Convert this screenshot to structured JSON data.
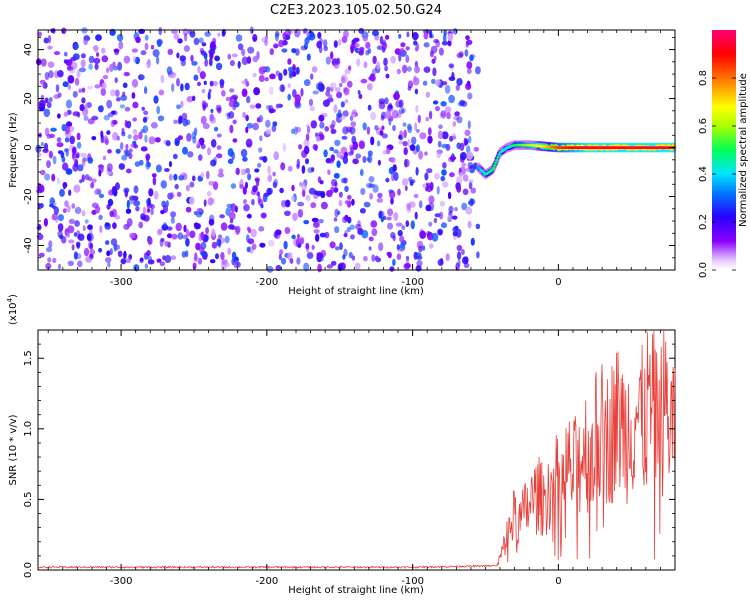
{
  "figure": {
    "title": "C2E3.2023.105.02.50.G24"
  },
  "chart_data": [
    {
      "type": "heatmap",
      "xlabel": "Height of straight line (km)",
      "ylabel": "Frequency (Hz)",
      "xlim": [
        -357,
        80
      ],
      "ylim": [
        -50,
        48
      ],
      "x_ticks": [
        -300,
        -200,
        -100,
        0
      ],
      "x_tick_labels": [
        "-300",
        "-200",
        "-100",
        "0"
      ],
      "y_ticks": [
        -40,
        -20,
        0,
        20,
        40
      ],
      "y_tick_labels": [
        "-40",
        "-20",
        "0",
        "20",
        "40"
      ],
      "noise_region": {
        "x_range": [
          -357,
          -55
        ],
        "amplitude_range": [
          0.05,
          0.3
        ]
      },
      "signal_track": {
        "x": [
          -55,
          -50,
          -45,
          -40,
          -35,
          -30,
          -20,
          -10,
          0,
          20,
          40,
          60,
          80
        ],
        "freq_hz": [
          -8,
          -11,
          -9,
          -2,
          0,
          1,
          1,
          0.5,
          0,
          0,
          0,
          0,
          0
        ],
        "amplitude": [
          0.35,
          0.45,
          0.5,
          0.45,
          0.4,
          0.5,
          0.6,
          0.7,
          0.85,
          0.95,
          0.95,
          0.95,
          0.95
        ]
      },
      "colorbar": {
        "label": "Normalized spectral amplitude",
        "ticks": [
          0.0,
          0.2,
          0.4,
          0.6,
          0.8
        ],
        "tick_labels": [
          "0.0",
          "0.2",
          "0.4",
          "0.6",
          "0.8"
        ],
        "range": [
          0,
          1
        ]
      },
      "grid": false
    },
    {
      "type": "line",
      "xlabel": "Height of straight line (km)",
      "ylabel": "SNR (10 * v/v)",
      "scale_label": "(x10",
      "scale_exponent": "4",
      "scale_suffix": ")",
      "xlim": [
        -357,
        80
      ],
      "ylim": [
        0,
        1.7
      ],
      "x_ticks": [
        -300,
        -200,
        -100,
        0
      ],
      "x_tick_labels": [
        "-300",
        "-200",
        "-100",
        "0"
      ],
      "y_ticks": [
        0.0,
        0.5,
        1.0,
        1.5
      ],
      "y_tick_labels": [
        "0.0",
        "0.5",
        "1.0",
        "1.5"
      ],
      "color": "#e8403a",
      "series": [
        {
          "x": [
            -357,
            -300,
            -200,
            -100,
            -42,
            -38,
            -34,
            -30,
            -26,
            -22,
            -18,
            -14,
            -10,
            -6,
            -2,
            2,
            6,
            10,
            14,
            18,
            22,
            26,
            30,
            34,
            38,
            42,
            46,
            50,
            54,
            58,
            62,
            66,
            70,
            74,
            78,
            80
          ],
          "y": [
            0.02,
            0.02,
            0.02,
            0.02,
            0.03,
            0.15,
            0.3,
            0.4,
            0.35,
            0.45,
            0.5,
            0.55,
            0.5,
            0.6,
            0.65,
            0.6,
            0.75,
            0.7,
            0.8,
            0.9,
            0.85,
            0.95,
            1.0,
            0.95,
            1.05,
            1.1,
            1.0,
            1.1,
            1.15,
            1.05,
            1.2,
            1.15,
            1.1,
            1.2,
            1.05,
            1.1
          ]
        }
      ],
      "grid": false
    }
  ]
}
